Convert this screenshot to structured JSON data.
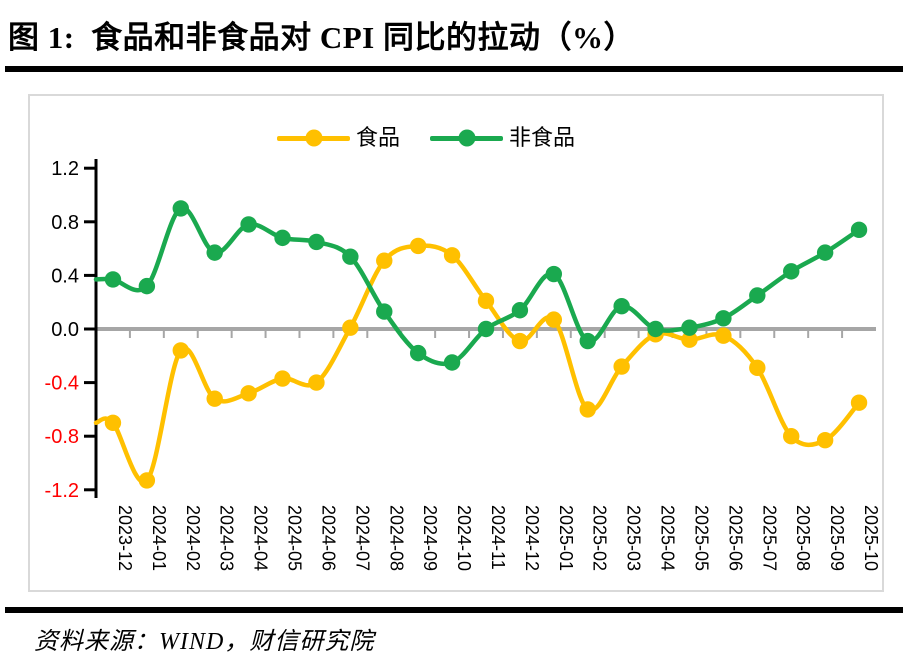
{
  "page": {
    "title": "图 1:  食品和非食品对 CPI 同比的拉动（%）",
    "source": "资料来源：WIND，财信研究院"
  },
  "chart_data": {
    "type": "line",
    "smooth": true,
    "title": "食品和非食品对 CPI 同比的拉动（%）",
    "categories": [
      "2023-12",
      "2024-01",
      "2024-02",
      "2024-03",
      "2024-04",
      "2024-05",
      "2024-06",
      "2024-07",
      "2024-08",
      "2024-09",
      "2024-10",
      "2024-11",
      "2024-12",
      "2025-01",
      "2025-02",
      "2025-03",
      "2025-04",
      "2025-05",
      "2025-06",
      "2025-07",
      "2025-08",
      "2025-09",
      "2025-10"
    ],
    "series": [
      {
        "name": "食品",
        "color": "#FFC000",
        "values": [
          -0.7,
          -1.13,
          -0.16,
          -0.52,
          -0.48,
          -0.37,
          -0.4,
          0.01,
          0.51,
          0.62,
          0.55,
          0.21,
          -0.09,
          0.07,
          -0.6,
          -0.28,
          -0.04,
          -0.08,
          -0.05,
          -0.29,
          -0.8,
          -0.83,
          -0.55
        ]
      },
      {
        "name": "非食品",
        "color": "#1AA94F",
        "values": [
          0.37,
          0.32,
          0.9,
          0.57,
          0.78,
          0.68,
          0.65,
          0.54,
          0.13,
          -0.18,
          -0.25,
          0.0,
          0.14,
          0.41,
          -0.09,
          0.17,
          0.0,
          0.01,
          0.08,
          0.25,
          0.43,
          0.57,
          0.74
        ]
      }
    ],
    "ylim": [
      -1.2,
      1.2
    ],
    "yticks": [
      {
        "v": 1.2,
        "label": "1.2"
      },
      {
        "v": 0.8,
        "label": "0.8"
      },
      {
        "v": 0.4,
        "label": "0.4"
      },
      {
        "v": 0.0,
        "label": "0.0"
      },
      {
        "v": -0.4,
        "label": "-0.4"
      },
      {
        "v": -0.8,
        "label": "-0.8"
      },
      {
        "v": -1.2,
        "label": "-1.2"
      }
    ],
    "grid": false,
    "legend_position": "top-center",
    "colors": {
      "axis": "#000000",
      "zero_line": "#A6A6A6",
      "negative_tick_label": "#FF0000",
      "positive_tick_label": "#000000",
      "plot_border": "#D9D9D9",
      "x_tick_label": "#000000"
    }
  }
}
